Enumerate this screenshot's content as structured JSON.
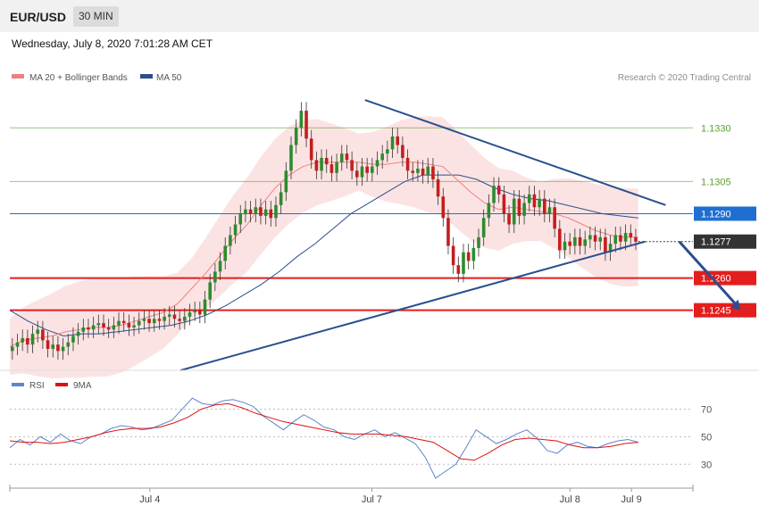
{
  "header": {
    "symbol": "EUR/USD",
    "timeframe": "30 MIN"
  },
  "timestamp": "Wednesday, July 8, 2020 7:01:28 AM CET",
  "legend": {
    "ma20": {
      "label": "MA 20 + Bollinger Bands",
      "color": "#f08080"
    },
    "ma50": {
      "label": "MA 50",
      "color": "#2a4f8f"
    }
  },
  "credit": "Research © 2020 Trading Central",
  "rsi_legend": {
    "rsi": {
      "label": "RSI",
      "color": "#5b86cc"
    },
    "ma9": {
      "label": "9MA",
      "color": "#dd1111"
    }
  },
  "x_axis_labels": [
    "Jul 4",
    "Jul 7",
    "Jul 8",
    "Jul 9"
  ],
  "price_levels": [
    {
      "label": "1.1330",
      "value": 1.133,
      "kind": "resistance",
      "color": "#5aa02c"
    },
    {
      "label": "1.1305",
      "value": 1.1305,
      "kind": "resistance",
      "color": "#5aa02c"
    },
    {
      "label": "1.1290",
      "value": 1.129,
      "kind": "pivot",
      "color": "#1f6fd1"
    },
    {
      "label": "1.1277",
      "value": 1.1277,
      "kind": "last",
      "color": "#333333"
    },
    {
      "label": "1.1260",
      "value": 1.126,
      "kind": "support",
      "color": "#e31e1e"
    },
    {
      "label": "1.1245",
      "value": 1.1245,
      "kind": "support",
      "color": "#e31e1e"
    }
  ],
  "rsi_levels": [
    {
      "label": "70",
      "value": 70
    },
    {
      "label": "50",
      "value": 50
    },
    {
      "label": "30",
      "value": 30
    }
  ],
  "chart_data": {
    "type": "candlestick",
    "x_range": [
      0,
      100
    ],
    "price_range": [
      1.1217,
      1.1348
    ],
    "rsi_range": [
      14,
      82
    ],
    "close": [
      1.1228,
      1.123,
      1.1232,
      1.1229,
      1.1234,
      1.1236,
      1.1231,
      1.1227,
      1.1229,
      1.1226,
      1.1228,
      1.123,
      1.1233,
      1.1235,
      1.1237,
      1.1236,
      1.1238,
      1.1239,
      1.1237,
      1.1236,
      1.1238,
      1.124,
      1.1239,
      1.1237,
      1.1238,
      1.124,
      1.1241,
      1.1239,
      1.1241,
      1.124,
      1.1242,
      1.1243,
      1.1241,
      1.124,
      1.1242,
      1.1244,
      1.1245,
      1.1243,
      1.125,
      1.1258,
      1.1263,
      1.1268,
      1.1275,
      1.128,
      1.1285,
      1.129,
      1.1292,
      1.129,
      1.1293,
      1.1289,
      1.1292,
      1.1288,
      1.1294,
      1.13,
      1.131,
      1.1322,
      1.133,
      1.1338,
      1.1325,
      1.1315,
      1.131,
      1.1316,
      1.1313,
      1.1309,
      1.1314,
      1.1318,
      1.1315,
      1.131,
      1.1307,
      1.1312,
      1.1309,
      1.1312,
      1.1315,
      1.1318,
      1.132,
      1.1326,
      1.1322,
      1.1316,
      1.131,
      1.1309,
      1.1311,
      1.1308,
      1.1312,
      1.1306,
      1.1298,
      1.1288,
      1.1275,
      1.1266,
      1.1262,
      1.1272,
      1.1268,
      1.1274,
      1.1279,
      1.1288,
      1.1295,
      1.1303,
      1.1299,
      1.129,
      1.1285,
      1.1297,
      1.1289,
      1.1295,
      1.1299,
      1.1293,
      1.1297,
      1.129,
      1.1293,
      1.1283,
      1.1273,
      1.1277,
      1.1275,
      1.1279,
      1.1275,
      1.1278,
      1.128,
      1.1277,
      1.1279,
      1.1272,
      1.1276,
      1.128,
      1.1277,
      1.1281,
      1.1279,
      1.1277
    ],
    "series": [
      {
        "name": "MA 20",
        "values": [
          1.1228,
          1.1231,
          1.1232,
          1.1233,
          1.1235,
          1.1236,
          1.1237,
          1.1237,
          1.1238,
          1.124,
          1.1242,
          1.1244,
          1.1248,
          1.1255,
          1.1262,
          1.127,
          1.1278,
          1.1285,
          1.1294,
          1.1302,
          1.1308,
          1.1312,
          1.1314,
          1.1314,
          1.1314,
          1.1314,
          1.1313,
          1.1313,
          1.1314,
          1.1314,
          1.1313,
          1.1312,
          1.1306,
          1.13,
          1.1295,
          1.1292,
          1.1293,
          1.1292,
          1.1291,
          1.129,
          1.1288,
          1.1285,
          1.1282,
          1.128,
          1.1279,
          1.1279
        ]
      },
      {
        "name": "MA 50",
        "values": [
          1.1245,
          1.124,
          1.1236,
          1.1233,
          1.1234,
          1.1234,
          1.1235,
          1.1236,
          1.1237,
          1.1238,
          1.124,
          1.1243,
          1.1247,
          1.1252,
          1.1257,
          1.1263,
          1.127,
          1.1276,
          1.1283,
          1.129,
          1.1295,
          1.13,
          1.1305,
          1.1308,
          1.1308,
          1.1308,
          1.1306,
          1.1302,
          1.1299,
          1.1297,
          1.1296,
          1.1294,
          1.1292,
          1.129,
          1.1289,
          1.1288
        ]
      },
      {
        "name": "RSI",
        "values": [
          42,
          48,
          44,
          50,
          46,
          52,
          47,
          45,
          50,
          52,
          56,
          58,
          57,
          55,
          56,
          59,
          62,
          70,
          78,
          74,
          73,
          76,
          77,
          75,
          72,
          65,
          60,
          55,
          61,
          66,
          62,
          57,
          55,
          50,
          48,
          52,
          55,
          50,
          53,
          49,
          45,
          35,
          20,
          25,
          30,
          42,
          55,
          50,
          45,
          48,
          52,
          55,
          49,
          40,
          38,
          44,
          46,
          43,
          42,
          45,
          47,
          48,
          46
        ]
      },
      {
        "name": "9MA",
        "values": [
          47,
          46,
          46,
          45,
          46,
          48,
          50,
          53,
          55,
          56,
          56,
          57,
          60,
          64,
          70,
          73,
          74,
          71,
          67,
          64,
          61,
          59,
          57,
          55,
          53,
          52,
          52,
          52,
          51,
          50,
          48,
          46,
          40,
          34,
          33,
          38,
          44,
          48,
          49,
          48,
          47,
          44,
          42,
          42,
          43,
          45,
          46
        ]
      }
    ],
    "trendlines": [
      {
        "name": "upper",
        "from": [
          52,
          1.1343
        ],
        "to": [
          96,
          1.1294
        ]
      },
      {
        "name": "lower",
        "from": [
          25,
          1.1217
        ],
        "to": [
          93,
          1.1277
        ]
      }
    ],
    "projection_arrow": {
      "from": [
        98,
        1.1277
      ],
      "to": [
        107,
        1.1245
      ]
    }
  }
}
